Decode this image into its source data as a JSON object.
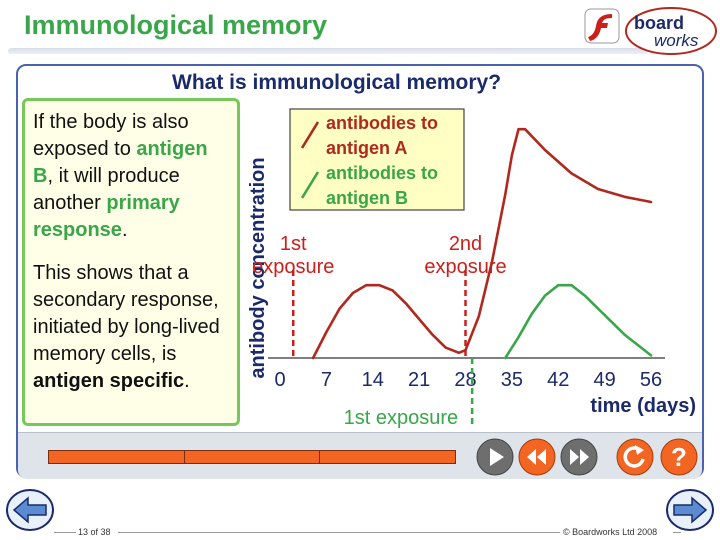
{
  "header": {
    "title": "Immunological memory",
    "logo_text_1": "board",
    "logo_text_2": "works"
  },
  "slide": {
    "heading": "What is immunological memory?",
    "para1": {
      "t1": "If the body is also exposed to ",
      "h1": "antigen B",
      "t2": ", it will produce another ",
      "h2": "primary response",
      "t3": "."
    },
    "para2": {
      "t1": "This shows that a secondary response, initiated by long-lived memory cells, is ",
      "h1": "antigen specific",
      "t2": "."
    }
  },
  "chart_data": {
    "type": "line",
    "ylabel": "antibody concentration",
    "xlabel": "time (days)",
    "x_ticks": [
      0,
      7,
      14,
      21,
      28,
      35,
      42,
      49,
      56
    ],
    "xlim": [
      0,
      56
    ],
    "ylim": [
      0,
      1
    ],
    "series": [
      {
        "name": "antibodies to antigen A",
        "color": "#b0281e",
        "x": [
          5,
          7,
          9,
          11,
          13,
          15,
          17,
          19,
          21,
          23,
          25,
          27,
          28,
          30,
          32,
          34,
          35,
          36,
          37,
          40,
          44,
          48,
          52,
          56
        ],
        "y": [
          0.0,
          0.1,
          0.19,
          0.25,
          0.28,
          0.28,
          0.26,
          0.21,
          0.15,
          0.09,
          0.04,
          0.02,
          0.03,
          0.16,
          0.37,
          0.63,
          0.78,
          0.88,
          0.88,
          0.8,
          0.71,
          0.65,
          0.62,
          0.6
        ]
      },
      {
        "name": "antibodies to antigen B",
        "color": "#3aa64a",
        "x": [
          34,
          36,
          38,
          40,
          42,
          44,
          46,
          48,
          50,
          52,
          54,
          56
        ],
        "y": [
          0.0,
          0.08,
          0.17,
          0.24,
          0.28,
          0.28,
          0.24,
          0.19,
          0.14,
          0.09,
          0.05,
          0.01
        ]
      }
    ],
    "markers": [
      {
        "x": 2,
        "color": "#cc1f1a",
        "label1": "1st",
        "label2": "exposure",
        "position": "top"
      },
      {
        "x": 28,
        "color": "#cc1f1a",
        "label1": "2nd",
        "label2": "exposure",
        "position": "top"
      },
      {
        "x": 29,
        "color": "#3aa64a",
        "label1": "1st exposure",
        "label2": "",
        "position": "bottom"
      }
    ],
    "legend": {
      "position": "top-left",
      "items": [
        {
          "line1": "antibodies to",
          "line2": "antigen A",
          "color": "#b0281e"
        },
        {
          "line1": "antibodies to",
          "line2": "antigen B",
          "color": "#3aa64a"
        }
      ]
    }
  },
  "footer": {
    "page": "13 of 38",
    "copyright": "© Boardworks Ltd 2008"
  },
  "controls": [
    "play-icon",
    "rewind-icon",
    "fast-forward-icon",
    "replay-icon",
    "help-icon"
  ],
  "colors": {
    "title_green": "#3aa64a",
    "heading_navy": "#1b2a6b",
    "timeline_orange": "#f26522",
    "frame_blue": "#4a63b0"
  }
}
